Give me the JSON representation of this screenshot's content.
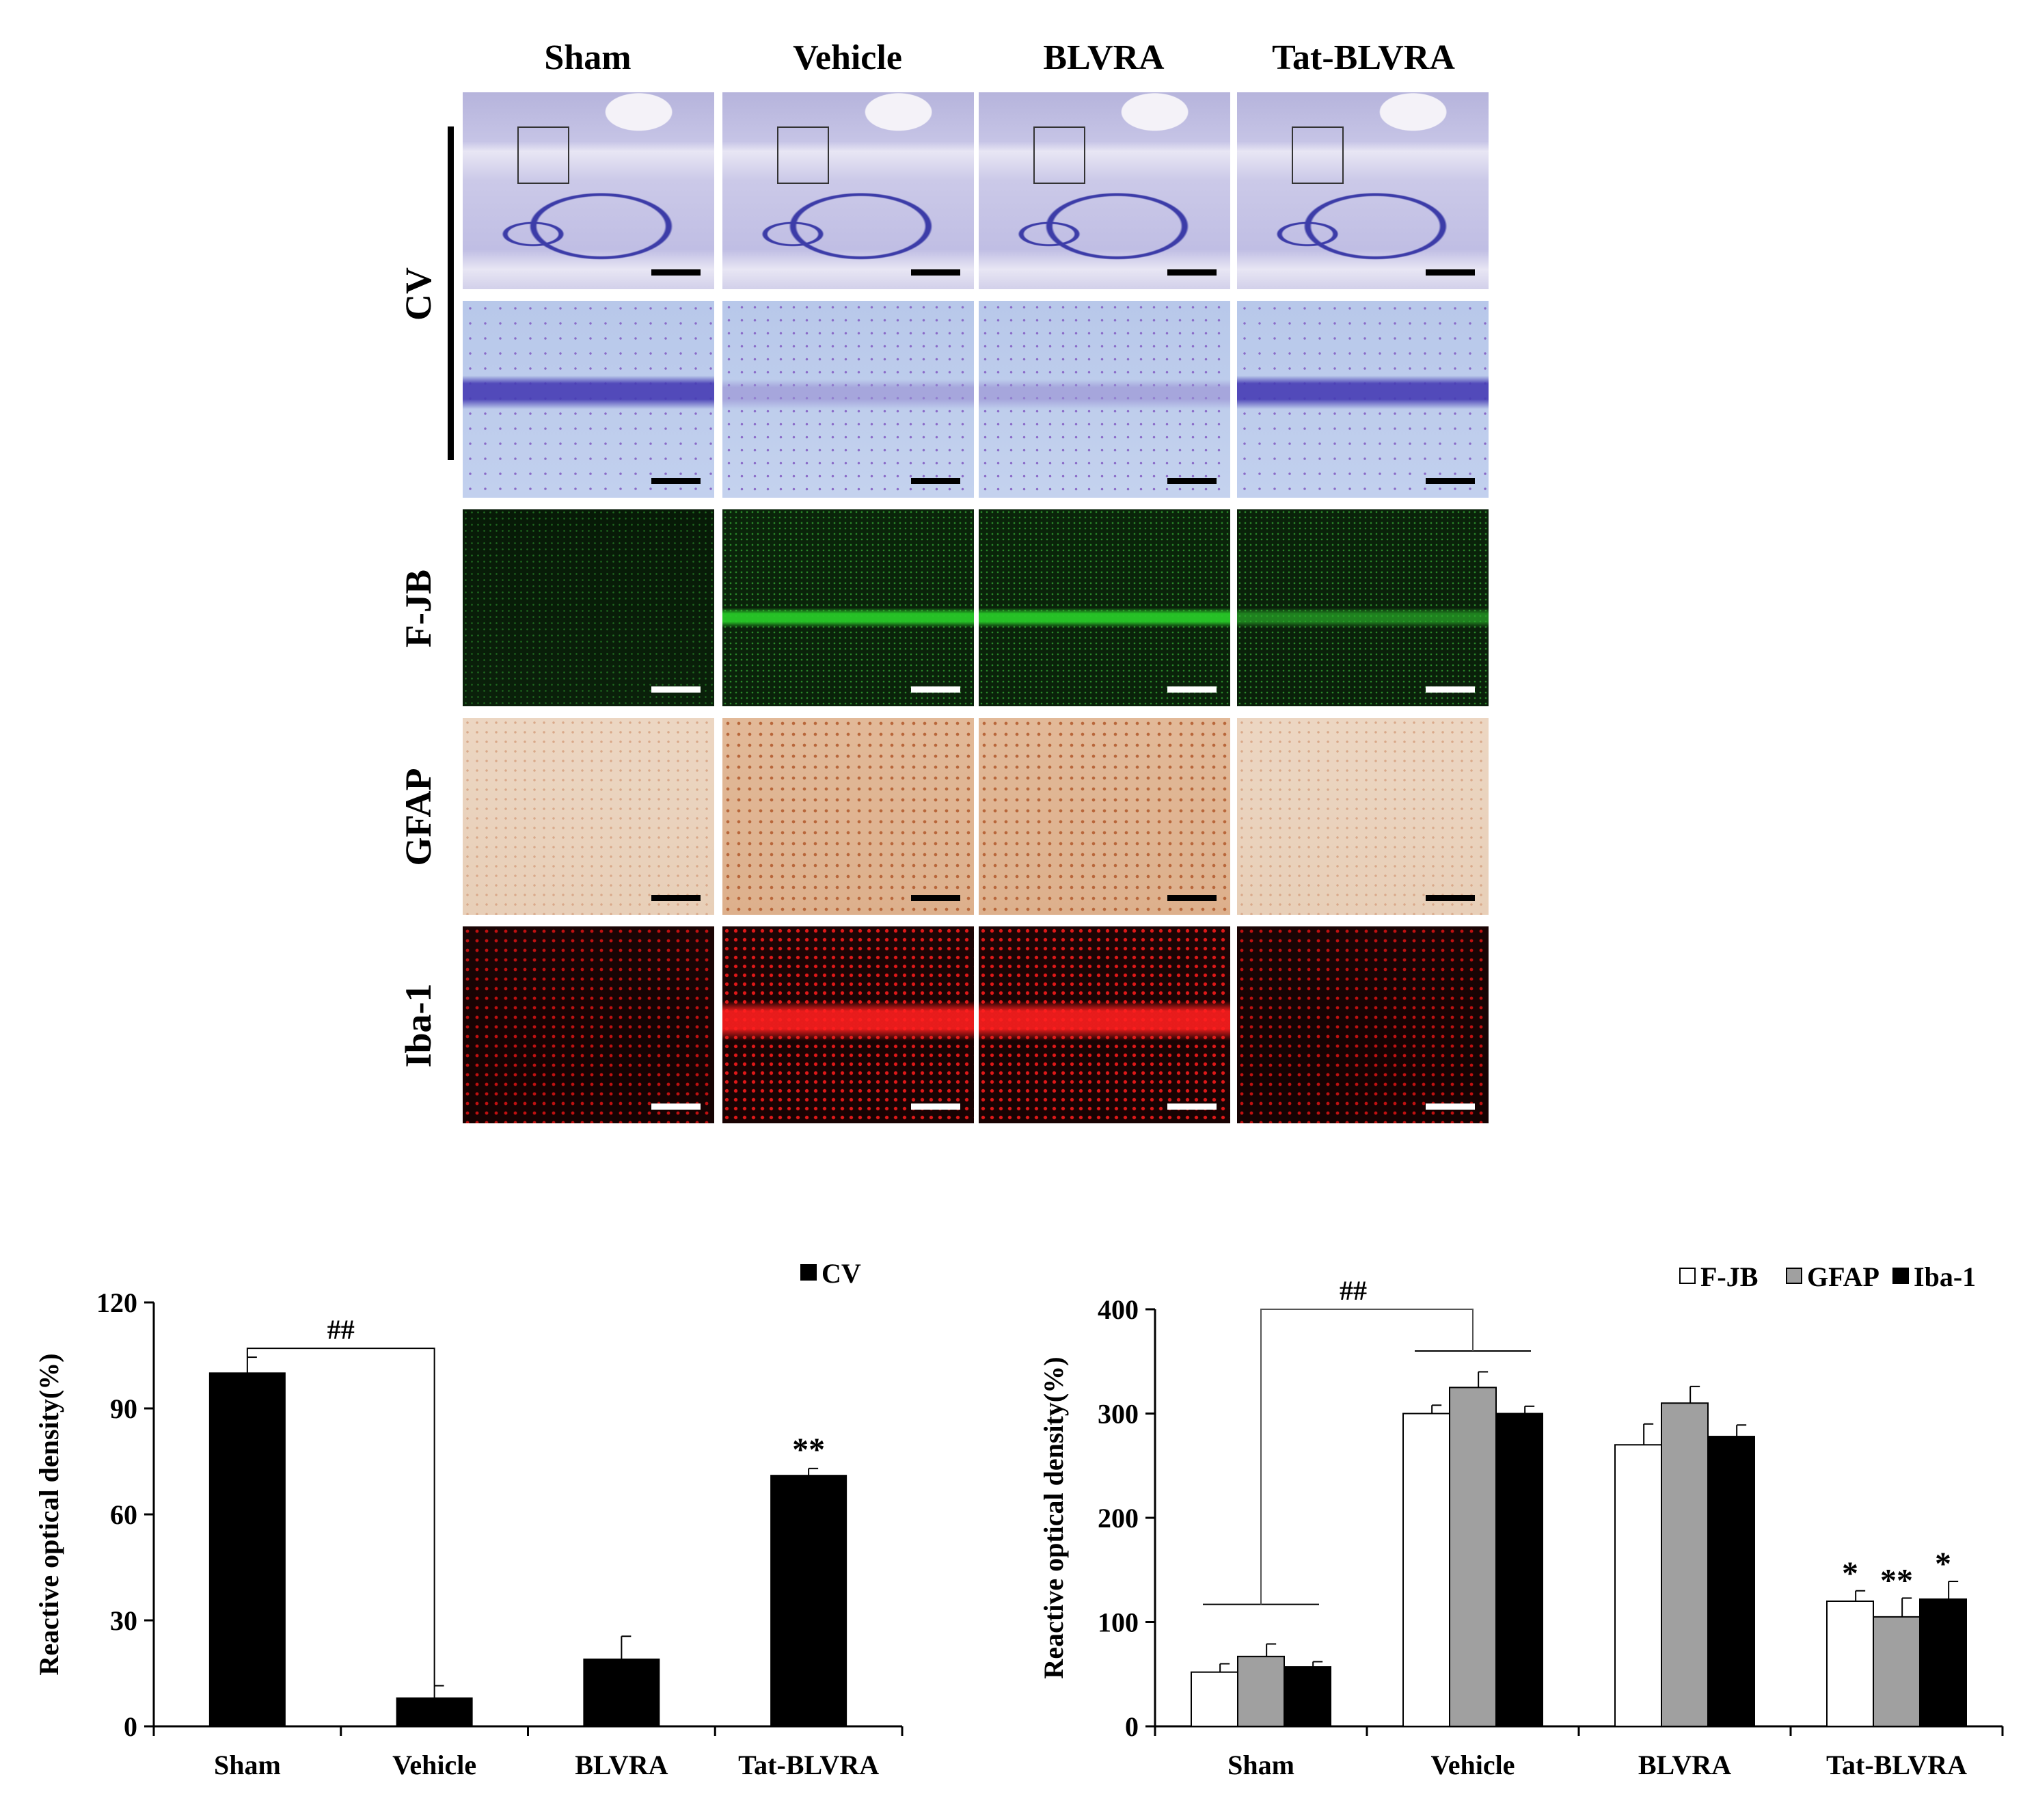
{
  "figure": {
    "columns": [
      "Sham",
      "Vehicle",
      "BLVRA",
      "Tat-BLVRA"
    ],
    "rows": [
      "CV",
      "F-JB",
      "GFAP",
      "Iba-1"
    ]
  },
  "chart_data": [
    {
      "type": "bar",
      "categories": [
        "Sham",
        "Vehicle",
        "BLVRA",
        "Tat-BLVRA"
      ],
      "series": [
        {
          "name": "CV",
          "color": "#000000",
          "values": [
            100,
            8,
            19,
            71
          ],
          "errors": [
            4.5,
            3.5,
            6.5,
            2
          ]
        }
      ],
      "ylabel": "Reactive optical density(%)",
      "ylim": [
        0,
        120
      ],
      "yticks": [
        "0",
        "30",
        "60",
        "90",
        "120"
      ],
      "annotations": [
        {
          "text": "##",
          "between": [
            "Sham",
            "Vehicle"
          ]
        },
        {
          "text": "**",
          "category": "Tat-BLVRA"
        }
      ],
      "legend": "top-right"
    },
    {
      "type": "bar",
      "categories": [
        "Sham",
        "Vehicle",
        "BLVRA",
        "Tat-BLVRA"
      ],
      "series": [
        {
          "name": "F-JB",
          "color": "#ffffff",
          "values": [
            52,
            300,
            270,
            120
          ],
          "errors": [
            8,
            8,
            20,
            10
          ]
        },
        {
          "name": "GFAP",
          "color": "#a0a0a0",
          "values": [
            67,
            325,
            310,
            105
          ],
          "errors": [
            12,
            15,
            16,
            18
          ]
        },
        {
          "name": "Iba-1",
          "color": "#000000",
          "values": [
            57,
            300,
            278,
            122
          ],
          "errors": [
            5,
            7,
            11,
            17
          ]
        }
      ],
      "ylabel": "Reactive optical density(%)",
      "ylim": [
        0,
        400
      ],
      "yticks": [
        "0",
        "100",
        "200",
        "300",
        "400"
      ],
      "annotations": [
        {
          "text": "##",
          "between": [
            "Sham",
            "Vehicle"
          ]
        },
        {
          "text": "*",
          "category": "Tat-BLVRA",
          "series": "F-JB"
        },
        {
          "text": "**",
          "category": "Tat-BLVRA",
          "series": "GFAP"
        },
        {
          "text": "*",
          "category": "Tat-BLVRA",
          "series": "Iba-1"
        }
      ],
      "legend": "top-right"
    }
  ]
}
